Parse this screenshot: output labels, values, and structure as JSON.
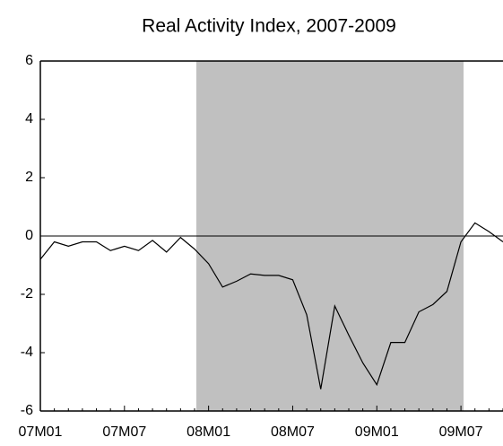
{
  "chart_data": {
    "type": "line",
    "title": "Real Activity Index, 2007-2009",
    "categories": [
      "07M01",
      null,
      null,
      null,
      null,
      null,
      "07M07",
      null,
      null,
      null,
      null,
      null,
      "08M01",
      null,
      null,
      null,
      null,
      null,
      "08M07",
      null,
      null,
      null,
      null,
      null,
      "09M01",
      null,
      null,
      null,
      null,
      null,
      "09M07",
      null,
      null,
      null
    ],
    "series": [
      {
        "name": "Real Activity Index",
        "color": "#000000",
        "values": [
          -0.8,
          -0.2,
          -0.35,
          -0.2,
          -0.2,
          -0.5,
          -0.35,
          -0.5,
          -0.15,
          -0.55,
          -0.05,
          -0.45,
          -0.95,
          -1.75,
          -1.55,
          -1.3,
          -1.35,
          -1.35,
          -1.5,
          -2.7,
          -5.25,
          -2.4,
          -3.4,
          -4.35,
          -5.1,
          -3.65,
          -3.65,
          -2.6,
          -2.35,
          -1.9,
          -0.2,
          0.45,
          0.15,
          -0.2
        ]
      }
    ],
    "ylim": [
      -6,
      6
    ],
    "yticks": [
      -6,
      -4,
      -2,
      0,
      2,
      4,
      6
    ]
  }
}
